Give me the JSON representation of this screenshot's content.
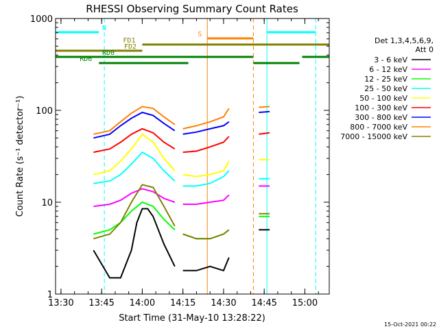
{
  "chart_data": {
    "type": "line",
    "title": "RHESSI Observing Summary Count Rates",
    "xlabel": "Start Time (31-May-10 13:28:22)",
    "ylabel": "Count Rate (s⁻¹ detector⁻¹)",
    "y_scale": "log",
    "ylim": [
      1,
      1000
    ],
    "xlim": [
      "13:28",
      "15:09"
    ],
    "x_ticks": [
      "13:30",
      "13:45",
      "14:00",
      "14:15",
      "14:30",
      "14:45",
      "15:00"
    ],
    "y_ticks": [
      "1",
      "10",
      "100",
      "1000"
    ],
    "grid": false,
    "legend_position": "right",
    "legend_header": [
      "Det 1,3,4,5,6,9,",
      "Att 0"
    ],
    "footer_date": "15-Oct-2021 00:22",
    "series": [
      {
        "name": "3 - 6 keV",
        "color": "#000000",
        "x": [
          "13:42",
          "13:48",
          "13:52",
          "13:56",
          "13:58",
          "14:00",
          "14:02",
          "14:04",
          "14:08",
          "14:12",
          "14:15",
          "14:20",
          "14:25",
          "14:30",
          "14:32",
          "14:43",
          "14:47"
        ],
        "values": [
          3.0,
          1.5,
          1.5,
          3.0,
          6.0,
          8.5,
          8.5,
          7.0,
          3.5,
          2.0,
          1.8,
          1.8,
          2.0,
          1.8,
          2.5,
          5.0,
          5.0
        ]
      },
      {
        "name": "6 - 12 keV",
        "color": "#ff00ff",
        "x": [
          "13:42",
          "13:48",
          "13:52",
          "13:56",
          "14:00",
          "14:04",
          "14:08",
          "14:12",
          "14:15",
          "14:20",
          "14:25",
          "14:30",
          "14:32",
          "14:43",
          "14:47"
        ],
        "values": [
          9.0,
          9.5,
          10.5,
          12.5,
          14.0,
          13.0,
          11.0,
          10.0,
          9.5,
          9.5,
          10.0,
          10.5,
          12.0,
          15.0,
          15.0
        ]
      },
      {
        "name": "12 - 25 keV",
        "color": "#00ff00",
        "x": [
          "13:42",
          "13:48",
          "13:52",
          "13:56",
          "14:00",
          "14:04",
          "14:08",
          "14:12",
          "14:15",
          "14:20",
          "14:25",
          "14:30",
          "14:32",
          "14:43",
          "14:47"
        ],
        "values": [
          4.5,
          5.0,
          6.0,
          8.0,
          10.0,
          9.0,
          6.5,
          5.0,
          4.5,
          4.0,
          4.0,
          4.5,
          5.0,
          7.0,
          7.0
        ]
      },
      {
        "name": "25 - 50 keV",
        "color": "#00ffff",
        "x": [
          "13:42",
          "13:48",
          "13:52",
          "13:56",
          "14:00",
          "14:04",
          "14:08",
          "14:12",
          "14:15",
          "14:20",
          "14:25",
          "14:30",
          "14:32",
          "14:43",
          "14:47"
        ],
        "values": [
          16,
          17,
          20,
          26,
          35,
          30,
          22,
          17,
          15,
          15,
          16,
          19,
          22,
          18,
          18
        ]
      },
      {
        "name": "50 - 100 keV",
        "color": "#ffff00",
        "x": [
          "13:42",
          "13:48",
          "13:52",
          "13:56",
          "14:00",
          "14:04",
          "14:08",
          "14:12",
          "14:15",
          "14:20",
          "14:25",
          "14:30",
          "14:32",
          "14:43",
          "14:47"
        ],
        "values": [
          20,
          22,
          28,
          38,
          55,
          45,
          30,
          22,
          20,
          19,
          20,
          22,
          28,
          29,
          29
        ]
      },
      {
        "name": "100 - 300 keV",
        "color": "#ff0000",
        "x": [
          "13:42",
          "13:48",
          "13:52",
          "13:56",
          "14:00",
          "14:04",
          "14:08",
          "14:12",
          "14:15",
          "14:20",
          "14:25",
          "14:30",
          "14:32",
          "14:43",
          "14:47"
        ],
        "values": [
          35,
          38,
          45,
          55,
          63,
          57,
          45,
          38,
          35,
          36,
          40,
          45,
          52,
          55,
          57
        ]
      },
      {
        "name": "300 - 800 keV",
        "color": "#0000ff",
        "x": [
          "13:42",
          "13:48",
          "13:52",
          "13:56",
          "14:00",
          "14:04",
          "14:08",
          "14:12",
          "14:15",
          "14:20",
          "14:25",
          "14:30",
          "14:32",
          "14:43",
          "14:47"
        ],
        "values": [
          50,
          55,
          68,
          82,
          95,
          88,
          72,
          60,
          55,
          58,
          63,
          68,
          75,
          95,
          97
        ]
      },
      {
        "name": "800 - 7000 keV",
        "color": "#ff8000",
        "x": [
          "13:42",
          "13:48",
          "13:52",
          "13:56",
          "14:00",
          "14:04",
          "14:08",
          "14:12",
          "14:15",
          "14:20",
          "14:25",
          "14:30",
          "14:32",
          "14:43",
          "14:47"
        ],
        "values": [
          55,
          60,
          75,
          93,
          110,
          105,
          85,
          70,
          63,
          68,
          75,
          85,
          105,
          108,
          110
        ]
      },
      {
        "name": "7000 - 15000 keV",
        "color": "#808000",
        "x": [
          "13:42",
          "13:48",
          "13:52",
          "13:56",
          "14:00",
          "14:04",
          "14:08",
          "14:12",
          "14:15",
          "14:20",
          "14:25",
          "14:30",
          "14:32",
          "14:43",
          "14:47"
        ],
        "values": [
          4.0,
          4.5,
          6.0,
          10.0,
          15.5,
          14.5,
          9.0,
          5.5,
          4.5,
          4.0,
          4.0,
          4.5,
          5.0,
          7.5,
          7.5
        ]
      }
    ],
    "data_gaps": [
      [
        "14:13",
        "14:14"
      ],
      [
        "14:33",
        "14:43"
      ],
      [
        "14:48",
        "15:09"
      ]
    ],
    "flag_bars": [
      {
        "label": "N",
        "color": "#00ffff",
        "level": 8,
        "segments": [
          [
            "13:28",
            "13:44"
          ],
          [
            "14:46",
            "15:04"
          ]
        ]
      },
      {
        "label": "S",
        "color": "#ff8000",
        "level": 7,
        "segments": [
          [
            "14:24",
            "14:41"
          ]
        ]
      },
      {
        "label": "FD1",
        "color": "#808000",
        "level": 6,
        "segments": [
          [
            "14:00",
            "15:09"
          ]
        ]
      },
      {
        "label": "FD2",
        "color": "#808000",
        "level": 5,
        "segments": [
          [
            "13:28",
            "14:00"
          ]
        ]
      },
      {
        "label": "RD0",
        "color": "#008000",
        "level": 4,
        "segments": [
          [
            "13:28",
            "14:41"
          ],
          [
            "14:59",
            "15:09"
          ]
        ]
      },
      {
        "label": "RD6",
        "color": "#008000",
        "level": 3,
        "segments": [
          [
            "13:44",
            "14:17"
          ],
          [
            "14:41",
            "14:58"
          ]
        ]
      }
    ],
    "vertical_markers": [
      {
        "x": "13:46",
        "color": "#00ffff",
        "style": "dashed"
      },
      {
        "x": "14:24",
        "color": "#ff8000",
        "style": "solid"
      },
      {
        "x": "14:41",
        "color": "#ff8000",
        "style": "dashed"
      },
      {
        "x": "14:46",
        "color": "#00ffff",
        "style": "solid"
      },
      {
        "x": "15:04",
        "color": "#00ffff",
        "style": "dashed"
      }
    ]
  }
}
